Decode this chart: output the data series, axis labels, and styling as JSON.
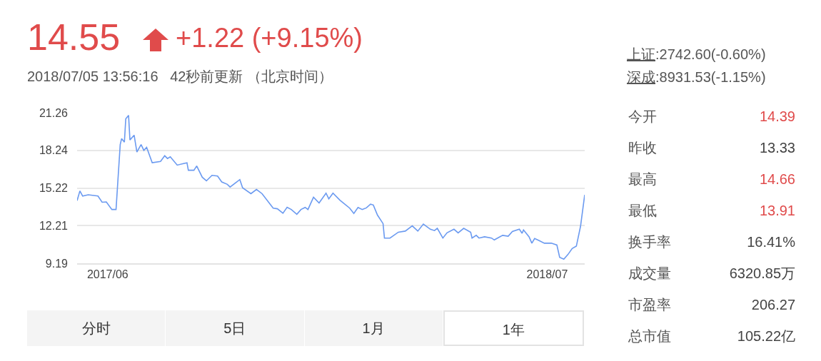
{
  "chart_data": {
    "type": "line",
    "title": "14.55",
    "subtitle": "2018/07/05 13:56:16   42秒前更新 （北京时间）",
    "annotations": [
      "+1.22 (+9.15%)",
      "上证:2742.60(-0.60%)",
      "深成:8931.53(-1.15%)",
      "今开",
      "14.39",
      "昨收",
      "13.33",
      "最高",
      "14.66",
      "最低",
      "13.91",
      "换手率",
      "16.41%",
      "成交量",
      "6320.85万",
      "市盈率",
      "206.27",
      "总市值",
      "105.22亿",
      "分时",
      "5日",
      "1月",
      "1年"
    ],
    "x": [
      "2017-07-05",
      "2017-07-07",
      "2017-07-09",
      "2017-07-13",
      "2017-07-20",
      "2017-07-23",
      "2017-07-26",
      "2017-07-30",
      "2017-08-02",
      "2017-08-05",
      "2017-08-06",
      "2017-08-08",
      "2017-08-09",
      "2017-08-11",
      "2017-08-12",
      "2017-08-15",
      "2017-08-17",
      "2017-08-20",
      "2017-08-22",
      "2017-08-24",
      "2017-08-28",
      "2017-09-03",
      "2017-09-06",
      "2017-09-08",
      "2017-09-10",
      "2017-09-15",
      "2017-09-19",
      "2017-09-22",
      "2017-09-23",
      "2017-09-27",
      "2017-09-29",
      "2017-10-03",
      "2017-10-06",
      "2017-10-10",
      "2017-10-14",
      "2017-10-17",
      "2017-10-21",
      "2017-10-23",
      "2017-10-30",
      "2017-11-01",
      "2017-11-07",
      "2017-11-11",
      "2017-11-15",
      "2017-11-23",
      "2017-11-26",
      "2017-11-30",
      "2017-12-03",
      "2017-12-06",
      "2017-12-10",
      "2017-12-13",
      "2017-12-16",
      "2017-12-18",
      "2017-12-22",
      "2017-12-26",
      "2017-12-31",
      "2018-01-02",
      "2018-01-05",
      "2018-01-10",
      "2018-01-17",
      "2018-01-20",
      "2018-01-23",
      "2018-01-26",
      "2018-01-29",
      "2018-02-01",
      "2018-02-03",
      "2018-02-06",
      "2018-02-10",
      "2018-02-11",
      "2018-02-15",
      "2018-02-21",
      "2018-02-26",
      "2018-03-03",
      "2018-03-07",
      "2018-03-11",
      "2018-03-16",
      "2018-03-19",
      "2018-03-21",
      "2018-03-25",
      "2018-03-28",
      "2018-04-02",
      "2018-04-05",
      "2018-04-09",
      "2018-04-14",
      "2018-04-15",
      "2018-04-18",
      "2018-04-20",
      "2018-04-24",
      "2018-04-29",
      "2018-05-01",
      "2018-05-04",
      "2018-05-07",
      "2018-05-11",
      "2018-05-14",
      "2018-05-19",
      "2018-05-21",
      "2018-05-22",
      "2018-05-26",
      "2018-05-28",
      "2018-05-30",
      "2018-06-02",
      "2018-06-06",
      "2018-06-11",
      "2018-06-15",
      "2018-06-17",
      "2018-06-20",
      "2018-06-23",
      "2018-06-26",
      "2018-06-29",
      "2018-07-02",
      "2018-07-05"
    ],
    "series": [
      {
        "color": "#6b9af0",
        "values": [
          14.21,
          14.99,
          14.58,
          14.68,
          14.58,
          14.08,
          14.11,
          13.5,
          13.5,
          18.71,
          19.18,
          18.9,
          20.77,
          21.05,
          19.08,
          19.46,
          18.11,
          18.71,
          18.24,
          18.49,
          17.25,
          17.36,
          17.81,
          17.59,
          17.73,
          17.06,
          17.17,
          17.25,
          16.65,
          16.65,
          16.99,
          16.09,
          15.8,
          16.24,
          16.18,
          15.71,
          15.52,
          15.3,
          15.9,
          15.24,
          14.77,
          15.11,
          14.77,
          13.61,
          13.56,
          13.2,
          13.68,
          13.5,
          13.12,
          13.5,
          13.67,
          13.5,
          14.49,
          14.02,
          14.81,
          14.36,
          14.81,
          14.25,
          13.61,
          13.18,
          13.67,
          13.5,
          13.63,
          13.93,
          13.86,
          13.05,
          12.37,
          11.21,
          11.21,
          11.68,
          11.77,
          12.19,
          11.77,
          12.33,
          11.92,
          11.81,
          11.99,
          11.21,
          11.63,
          11.92,
          11.63,
          11.99,
          11.68,
          11.21,
          11.43,
          11.21,
          11.31,
          11.21,
          11.06,
          11.25,
          11.43,
          11.36,
          11.74,
          11.92,
          11.59,
          11.86,
          11.31,
          10.8,
          11.17,
          11.02,
          10.8,
          10.8,
          10.65,
          9.67,
          9.52,
          9.9,
          10.37,
          10.56,
          12.15,
          14.68
        ]
      }
    ],
    "xlim": [
      "2017-07-05",
      "2018-07-05"
    ],
    "xticks": [
      {
        "value": "2017-07-27",
        "label": "2017/06"
      },
      {
        "value": "2018-06-08",
        "label": "2018/07"
      }
    ],
    "ylim": [
      9.19,
      21.26
    ],
    "yticks": [
      9.19,
      12.21,
      15.22,
      18.24,
      21.26
    ],
    "grid": "y",
    "marker": "none",
    "line_style": "solid"
  }
}
